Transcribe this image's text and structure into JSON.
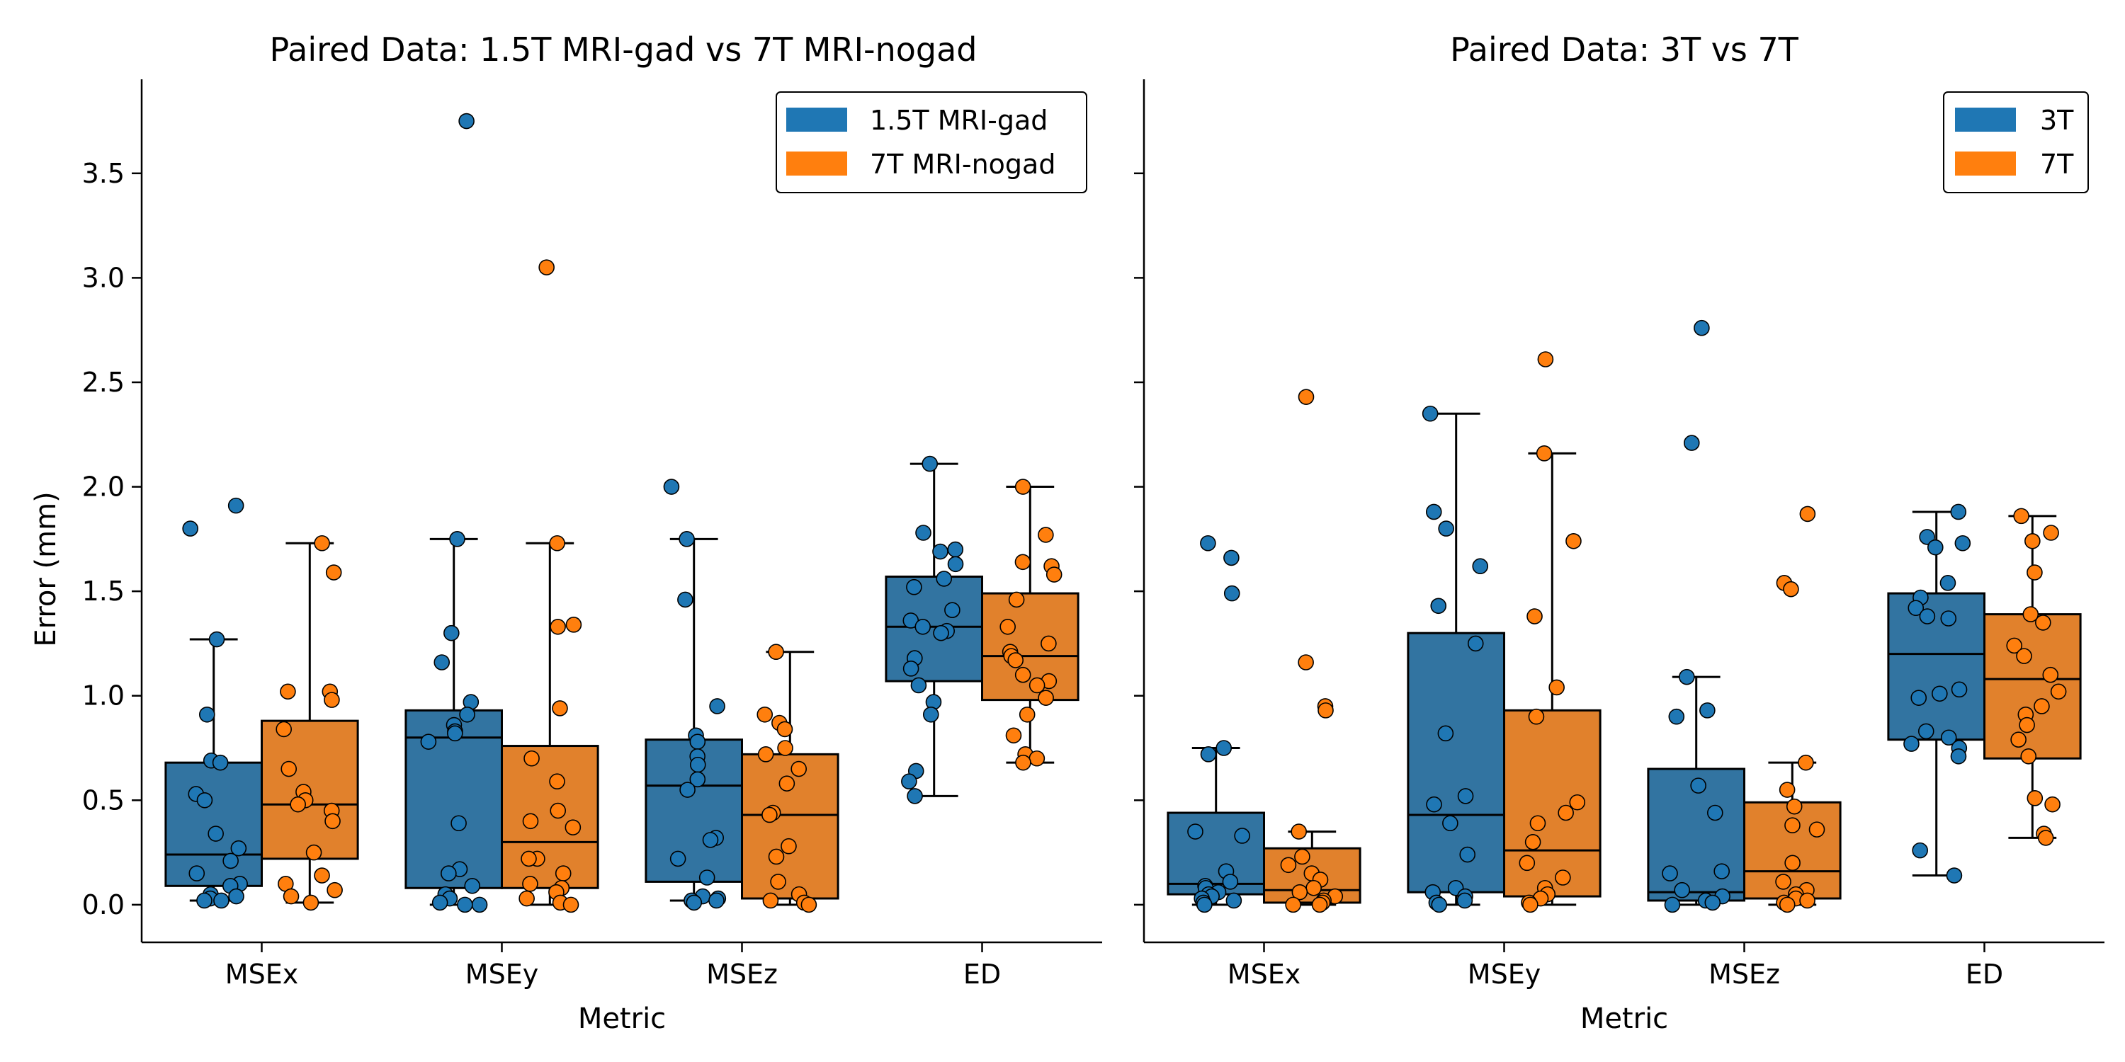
{
  "chart_data": [
    {
      "type": "box",
      "title": "Paired Data: 1.5T MRI-gad vs 7T MRI-nogad",
      "xlabel": "Metric",
      "ylabel": "Error (mm)",
      "ylim": [
        -0.18,
        3.95
      ],
      "yticks": [
        0.0,
        0.5,
        1.0,
        1.5,
        2.0,
        2.5,
        3.0,
        3.5
      ],
      "ytick_labels": [
        "0.0",
        "0.5",
        "1.0",
        "1.5",
        "2.0",
        "2.5",
        "3.0",
        "3.5"
      ],
      "categories": [
        "MSEx",
        "MSEy",
        "MSEz",
        "ED"
      ],
      "legend_position": "top-right",
      "series": [
        {
          "name": "1.5T MRI-gad",
          "color": "#1f77b4",
          "box_color": "#3274a1",
          "boxes": [
            {
              "q1": 0.09,
              "median": 0.24,
              "q3": 0.68,
              "whislo": 0.02,
              "whishi": 1.27
            },
            {
              "q1": 0.08,
              "median": 0.8,
              "q3": 0.93,
              "whislo": 0.0,
              "whishi": 1.75
            },
            {
              "q1": 0.11,
              "median": 0.57,
              "q3": 0.79,
              "whislo": 0.02,
              "whishi": 1.75
            },
            {
              "q1": 1.07,
              "median": 1.33,
              "q3": 1.57,
              "whislo": 0.52,
              "whishi": 2.11
            }
          ],
          "points": [
            [
              1.91,
              1.8,
              1.27,
              0.91,
              0.69,
              0.68,
              0.53,
              0.5,
              0.34,
              0.27,
              0.21,
              0.15,
              0.1,
              0.09,
              0.05,
              0.04,
              0.03,
              0.02,
              0.02
            ],
            [
              3.75,
              1.75,
              1.3,
              1.16,
              0.97,
              0.91,
              0.86,
              0.83,
              0.82,
              0.78,
              0.39,
              0.17,
              0.15,
              0.09,
              0.05,
              0.03,
              0.01,
              0.0,
              0.0
            ],
            [
              2.0,
              1.75,
              1.46,
              0.95,
              0.81,
              0.78,
              0.71,
              0.67,
              0.6,
              0.55,
              0.32,
              0.31,
              0.22,
              0.13,
              0.04,
              0.03,
              0.02,
              0.02,
              0.01
            ],
            [
              2.11,
              1.78,
              1.7,
              1.69,
              1.63,
              1.56,
              1.52,
              1.41,
              1.36,
              1.33,
              1.31,
              1.3,
              1.18,
              1.13,
              1.05,
              0.97,
              0.91,
              0.64,
              0.59,
              0.52
            ]
          ]
        },
        {
          "name": "7T MRI-nogad",
          "color": "#ff7f0e",
          "box_color": "#e1812c",
          "boxes": [
            {
              "q1": 0.22,
              "median": 0.48,
              "q3": 0.88,
              "whislo": 0.01,
              "whishi": 1.73
            },
            {
              "q1": 0.08,
              "median": 0.3,
              "q3": 0.76,
              "whislo": 0.0,
              "whishi": 1.73
            },
            {
              "q1": 0.03,
              "median": 0.43,
              "q3": 0.72,
              "whislo": 0.0,
              "whishi": 1.21
            },
            {
              "q1": 0.98,
              "median": 1.19,
              "q3": 1.49,
              "whislo": 0.68,
              "whishi": 2.0
            }
          ],
          "points": [
            [
              1.73,
              1.59,
              1.02,
              1.02,
              0.98,
              0.84,
              0.65,
              0.54,
              0.5,
              0.48,
              0.45,
              0.4,
              0.25,
              0.14,
              0.1,
              0.07,
              0.04,
              0.01
            ],
            [
              3.05,
              1.73,
              1.34,
              1.33,
              0.94,
              0.7,
              0.59,
              0.45,
              0.4,
              0.37,
              0.22,
              0.22,
              0.15,
              0.1,
              0.08,
              0.06,
              0.03,
              0.01,
              0.0
            ],
            [
              1.21,
              0.91,
              0.87,
              0.84,
              0.75,
              0.72,
              0.65,
              0.58,
              0.44,
              0.43,
              0.28,
              0.23,
              0.11,
              0.05,
              0.02,
              0.01,
              0.0
            ],
            [
              2.0,
              1.77,
              1.64,
              1.62,
              1.58,
              1.46,
              1.33,
              1.25,
              1.21,
              1.19,
              1.17,
              1.1,
              1.07,
              1.05,
              0.99,
              0.91,
              0.81,
              0.72,
              0.7,
              0.68
            ]
          ]
        }
      ]
    },
    {
      "type": "box",
      "title": "Paired Data: 3T vs 7T",
      "xlabel": "Metric",
      "ylabel": "",
      "ylim": [
        -0.18,
        3.95
      ],
      "yticks": [
        0.0,
        0.5,
        1.0,
        1.5,
        2.0,
        2.5,
        3.0,
        3.5
      ],
      "categories": [
        "MSEx",
        "MSEy",
        "MSEz",
        "ED"
      ],
      "legend_position": "top-right",
      "series": [
        {
          "name": "3T",
          "color": "#1f77b4",
          "box_color": "#3274a1",
          "boxes": [
            {
              "q1": 0.05,
              "median": 0.1,
              "q3": 0.44,
              "whislo": 0.0,
              "whishi": 0.75
            },
            {
              "q1": 0.06,
              "median": 0.43,
              "q3": 1.3,
              "whislo": 0.0,
              "whishi": 2.35
            },
            {
              "q1": 0.02,
              "median": 0.06,
              "q3": 0.65,
              "whislo": 0.0,
              "whishi": 1.09
            },
            {
              "q1": 0.79,
              "median": 1.2,
              "q3": 1.49,
              "whislo": 0.14,
              "whishi": 1.88
            }
          ],
          "points": [
            [
              1.73,
              1.66,
              1.49,
              0.75,
              0.72,
              0.35,
              0.33,
              0.16,
              0.11,
              0.09,
              0.08,
              0.06,
              0.05,
              0.04,
              0.03,
              0.02,
              0.01,
              0.0
            ],
            [
              2.35,
              1.88,
              1.8,
              1.62,
              1.43,
              1.25,
              0.82,
              0.52,
              0.48,
              0.39,
              0.24,
              0.08,
              0.06,
              0.04,
              0.02,
              0.01,
              0.0
            ],
            [
              2.76,
              2.21,
              1.09,
              0.93,
              0.9,
              0.57,
              0.44,
              0.16,
              0.15,
              0.07,
              0.04,
              0.02,
              0.01,
              0.0
            ],
            [
              1.88,
              1.76,
              1.73,
              1.71,
              1.54,
              1.47,
              1.42,
              1.38,
              1.37,
              1.03,
              1.01,
              0.99,
              0.83,
              0.8,
              0.77,
              0.75,
              0.71,
              0.26,
              0.14
            ]
          ]
        },
        {
          "name": "7T",
          "color": "#ff7f0e",
          "box_color": "#e1812c",
          "boxes": [
            {
              "q1": 0.01,
              "median": 0.07,
              "q3": 0.27,
              "whislo": 0.0,
              "whishi": 0.35
            },
            {
              "q1": 0.04,
              "median": 0.26,
              "q3": 0.93,
              "whislo": 0.0,
              "whishi": 2.16
            },
            {
              "q1": 0.03,
              "median": 0.16,
              "q3": 0.49,
              "whislo": 0.0,
              "whishi": 0.68
            },
            {
              "q1": 0.7,
              "median": 1.08,
              "q3": 1.39,
              "whislo": 0.32,
              "whishi": 1.86
            }
          ],
          "points": [
            [
              2.43,
              1.16,
              0.95,
              0.93,
              0.35,
              0.23,
              0.19,
              0.15,
              0.12,
              0.08,
              0.06,
              0.04,
              0.02,
              0.01,
              0.0,
              0.0
            ],
            [
              2.61,
              2.16,
              1.74,
              1.38,
              1.04,
              0.9,
              0.49,
              0.44,
              0.39,
              0.3,
              0.2,
              0.13,
              0.08,
              0.05,
              0.03,
              0.01,
              0.0
            ],
            [
              1.87,
              1.54,
              1.51,
              0.68,
              0.55,
              0.47,
              0.38,
              0.36,
              0.2,
              0.11,
              0.07,
              0.05,
              0.03,
              0.02,
              0.01,
              0.0
            ],
            [
              1.86,
              1.78,
              1.74,
              1.59,
              1.39,
              1.35,
              1.24,
              1.19,
              1.1,
              1.02,
              0.95,
              0.91,
              0.86,
              0.79,
              0.71,
              0.51,
              0.48,
              0.34,
              0.32
            ]
          ]
        }
      ]
    }
  ]
}
